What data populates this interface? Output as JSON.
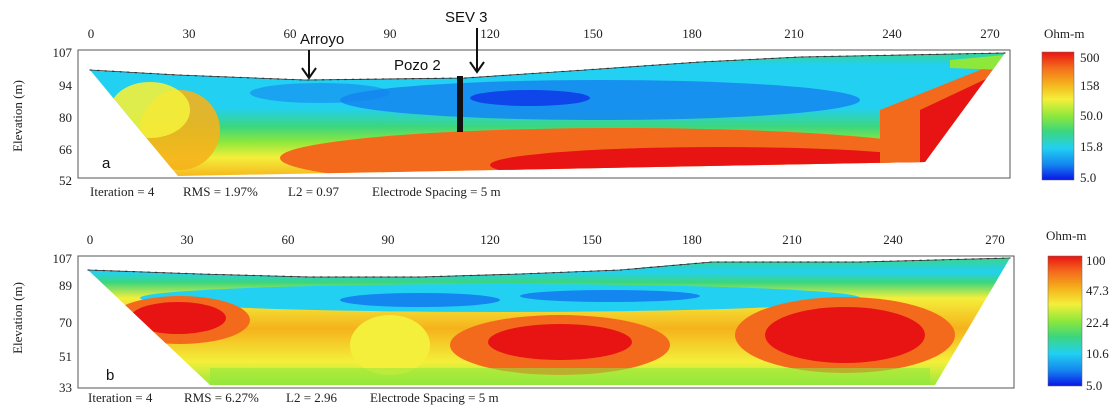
{
  "colors": {
    "scale": [
      "#0a14e6",
      "#1486f0",
      "#22d0f2",
      "#3cd67d",
      "#8ee83c",
      "#f4ef3a",
      "#f5b21c",
      "#f46a1c",
      "#e81414"
    ]
  },
  "panels": [
    {
      "panel_label": "a",
      "x_ticks": [
        "0",
        "30",
        "60",
        "90",
        "120",
        "150",
        "180",
        "210",
        "240",
        "270"
      ],
      "y_ticks": [
        "107",
        "94",
        "80",
        "66",
        "52"
      ],
      "y_axis_label": "Elevation (m)",
      "caption": {
        "iteration": "Iteration = 4",
        "rms": "RMS = 1.97%",
        "l2": "L2 = 0.97",
        "spacing": "Electrode Spacing = 5 m"
      },
      "colorbar": {
        "title": "Ohm-m",
        "labels": [
          "500",
          "158",
          "50.0",
          "15.8",
          "5.0"
        ]
      },
      "annotations": {
        "arroyo": "Arroyo",
        "sev": "SEV 3",
        "pozo": "Pozo 2"
      }
    },
    {
      "panel_label": "b",
      "x_ticks": [
        "0",
        "30",
        "60",
        "90",
        "120",
        "150",
        "180",
        "210",
        "240",
        "270"
      ],
      "y_ticks": [
        "107",
        "89",
        "70",
        "51",
        "33"
      ],
      "y_axis_label": "Elevation (m)",
      "caption": {
        "iteration": "Iteration = 4",
        "rms": "RMS = 6.27%",
        "l2": "L2 = 2.96",
        "spacing": "Electrode Spacing = 5 m"
      },
      "colorbar": {
        "title": "Ohm-m",
        "labels": [
          "100",
          "47.3",
          "22.4",
          "10.6",
          "5.0"
        ]
      }
    }
  ]
}
